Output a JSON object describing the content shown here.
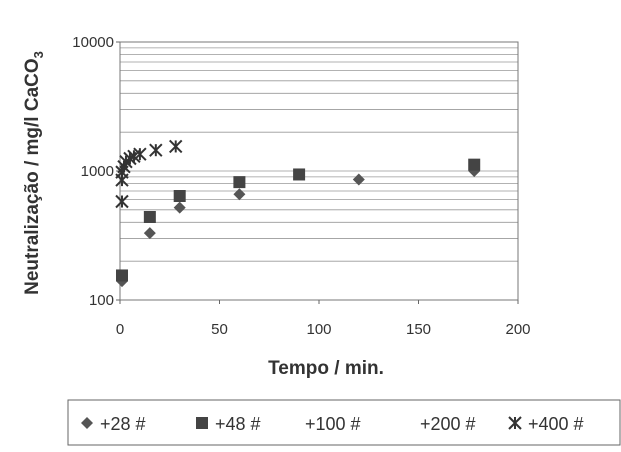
{
  "chart_data": {
    "type": "scatter",
    "title": "",
    "xlabel": "Tempo / min.",
    "ylabel": "Neutralização / mg/l CaCO",
    "ylabel_subscript": "3",
    "xlim": [
      0,
      200
    ],
    "ylim": [
      100,
      10000
    ],
    "yscale": "log",
    "x_ticks": [
      0,
      50,
      100,
      150,
      200
    ],
    "y_ticks": [
      100,
      1000,
      10000
    ],
    "grid": "horizontal",
    "legend_position": "bottom",
    "series": [
      {
        "name": "+28 #",
        "marker": "diamond",
        "color": "#555555",
        "x": [
          0,
          15,
          30,
          60,
          120,
          178
        ],
        "y": [
          140,
          330,
          520,
          660,
          860,
          1000
        ]
      },
      {
        "name": "+48 #",
        "marker": "square",
        "color": "#444444",
        "x": [
          0,
          15,
          30,
          60,
          90,
          178
        ],
        "y": [
          155,
          440,
          640,
          820,
          940,
          1120
        ]
      },
      {
        "name": "+100 #",
        "marker": "none",
        "color": "#666666",
        "x": [],
        "y": []
      },
      {
        "name": "+200 #",
        "marker": "none",
        "color": "#666666",
        "x": [],
        "y": []
      },
      {
        "name": "+400 #",
        "marker": "star",
        "color": "#333333",
        "x": [
          0,
          0,
          1,
          2,
          3,
          5,
          7,
          10,
          18,
          28
        ],
        "y": [
          580,
          850,
          980,
          1080,
          1180,
          1250,
          1300,
          1350,
          1450,
          1550
        ]
      }
    ]
  }
}
